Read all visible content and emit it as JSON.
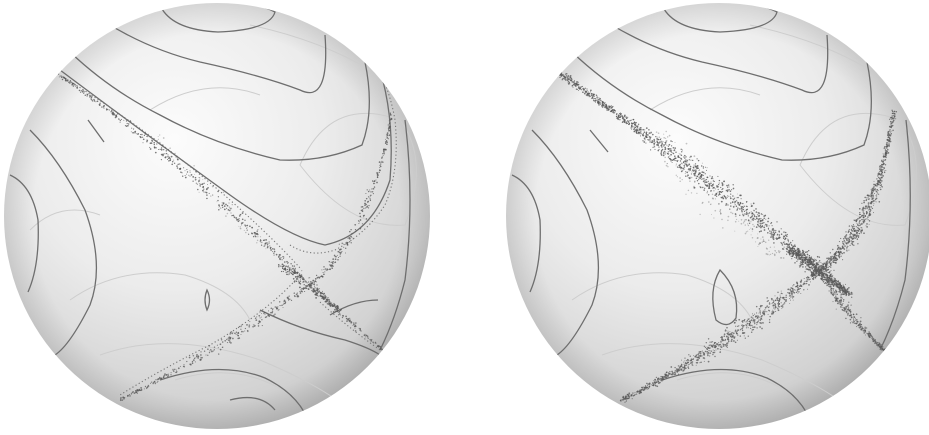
{
  "figure": {
    "panels": [
      {
        "id": "left-sphere",
        "scatter_points": 1300,
        "scatter_spread": 0.55
      },
      {
        "id": "right-sphere",
        "scatter_points": 3800,
        "scatter_spread": 1.0
      }
    ],
    "colors": {
      "background": "#ffffff",
      "sphere_light": "#fbfbfb",
      "sphere_mid": "#e2e2e2",
      "sphere_dark": "#b9b9b9",
      "contour_dark": "#6a6a6a",
      "contour_light": "#c9c9c9",
      "scatter": "#5a5a5a"
    }
  }
}
